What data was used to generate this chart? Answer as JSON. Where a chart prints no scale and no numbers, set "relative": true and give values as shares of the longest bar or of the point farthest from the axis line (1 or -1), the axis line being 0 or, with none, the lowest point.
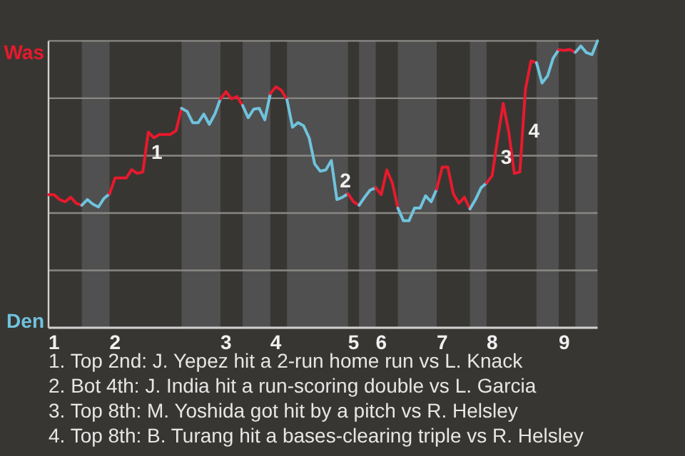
{
  "chart_data": {
    "type": "line",
    "relative": true,
    "categories": [
      null,
      "1",
      null,
      null,
      null,
      null,
      null,
      null,
      null,
      null,
      null,
      null,
      "2",
      null,
      null,
      null,
      null,
      null,
      null,
      null,
      null,
      null,
      null,
      null,
      null,
      null,
      null,
      null,
      null,
      null,
      null,
      null,
      "3",
      null,
      null,
      null,
      null,
      null,
      null,
      null,
      null,
      "4",
      null,
      null,
      null,
      null,
      null,
      null,
      null,
      null,
      null,
      null,
      null,
      null,
      null,
      "5",
      null,
      null,
      null,
      null,
      "6",
      null,
      null,
      null,
      null,
      null,
      null,
      null,
      null,
      null,
      null,
      "7",
      null,
      null,
      null,
      null,
      null,
      null,
      null,
      null,
      "8",
      null,
      null,
      null,
      null,
      null,
      null,
      null,
      null,
      null,
      null,
      null,
      null,
      "9",
      null,
      null,
      null,
      null,
      null,
      null
    ],
    "series": [
      {
        "color": "#e8192c",
        "values": [
          0.464,
          0.464,
          0.447,
          0.439,
          0.455,
          0.434,
          0.427,
          null,
          null,
          null,
          null,
          null,
          null,
          null,
          null,
          null,
          null,
          null,
          null,
          null,
          null,
          null,
          null,
          null,
          null,
          null,
          null,
          null,
          null,
          null,
          null,
          null,
          null,
          null,
          null,
          null,
          null,
          null,
          null,
          null,
          null,
          null,
          null,
          null,
          null,
          null,
          null,
          null,
          null,
          null,
          null,
          null,
          null,
          null,
          null,
          null,
          null,
          null,
          null,
          null,
          null,
          null,
          null,
          null,
          null,
          null,
          null,
          null,
          null,
          null,
          null,
          null,
          null,
          null,
          null,
          null,
          null,
          null,
          null,
          null,
          null,
          null,
          null,
          null,
          null,
          null,
          null,
          null,
          null,
          null,
          null,
          null,
          null,
          null,
          null,
          null,
          null,
          null,
          null,
          null
        ]
      },
      {
        "color": "#6fc3df",
        "values": [
          null,
          null,
          null,
          null,
          null,
          null,
          0.427,
          0.447,
          0.431,
          0.421,
          0.451,
          0.467,
          null,
          null,
          null,
          null,
          null,
          null,
          null,
          null,
          null,
          null,
          null,
          null,
          null,
          null,
          null,
          null,
          null,
          null,
          null,
          null,
          null,
          null,
          null,
          null,
          null,
          null,
          null,
          null,
          null,
          null,
          null,
          null,
          null,
          null,
          null,
          null,
          null,
          null,
          null,
          null,
          null,
          null,
          null,
          null,
          null,
          null,
          null,
          null,
          null,
          null,
          null,
          null,
          null,
          null,
          null,
          null,
          null,
          null,
          null,
          null,
          null,
          null,
          null,
          null,
          null,
          null,
          null,
          null,
          null,
          null,
          null,
          null,
          null,
          null,
          null,
          null,
          null,
          null,
          null,
          null,
          null,
          null,
          null,
          null,
          null,
          null,
          null,
          null
        ]
      },
      {
        "name": "1",
        "color": "#e8192d",
        "values": [
          null,
          null,
          null,
          null,
          null,
          null,
          null,
          null,
          null,
          null,
          null,
          0.467,
          0.522,
          0.522,
          0.522,
          0.551,
          0.538,
          0.543,
          0.682,
          0.662,
          0.674,
          0.674,
          0.674,
          0.687,
          0.765,
          null,
          null,
          null,
          null,
          null,
          null,
          null,
          null,
          null,
          null,
          null,
          null,
          null,
          null,
          null,
          null,
          null,
          null,
          null,
          null,
          null,
          null,
          null,
          null,
          null,
          null,
          null,
          null,
          null,
          null,
          null,
          null,
          null,
          null,
          null,
          null,
          null,
          null,
          null,
          null,
          null,
          null,
          null,
          null,
          null,
          null,
          null,
          null,
          null,
          null,
          null,
          null,
          null,
          null,
          null,
          null,
          null,
          null,
          null,
          null,
          null,
          null,
          null,
          null,
          null,
          null,
          null,
          null,
          null,
          null,
          null,
          null,
          null,
          null,
          null
        ]
      },
      {
        "color": "#6fc3de",
        "values": [
          null,
          null,
          null,
          null,
          null,
          null,
          null,
          null,
          null,
          null,
          null,
          null,
          null,
          null,
          null,
          null,
          null,
          null,
          null,
          null,
          null,
          null,
          null,
          null,
          0.765,
          0.754,
          0.715,
          0.715,
          0.745,
          0.709,
          0.745,
          0.798,
          null,
          null,
          null,
          null,
          null,
          null,
          null,
          null,
          null,
          null,
          null,
          null,
          null,
          null,
          null,
          null,
          null,
          null,
          null,
          null,
          null,
          null,
          null,
          null,
          null,
          null,
          null,
          null,
          null,
          null,
          null,
          null,
          null,
          null,
          null,
          null,
          null,
          null,
          null,
          null,
          null,
          null,
          null,
          null,
          null,
          null,
          null,
          null,
          null,
          null,
          null,
          null,
          null,
          null,
          null,
          null,
          null,
          null,
          null,
          null,
          null,
          null,
          null,
          null,
          null,
          null,
          null,
          null
        ]
      },
      {
        "color": "#e8192e",
        "values": [
          null,
          null,
          null,
          null,
          null,
          null,
          null,
          null,
          null,
          null,
          null,
          null,
          null,
          null,
          null,
          null,
          null,
          null,
          null,
          null,
          null,
          null,
          null,
          null,
          null,
          null,
          null,
          null,
          null,
          null,
          null,
          0.798,
          0.823,
          0.798,
          0.806,
          0.775,
          null,
          null,
          null,
          null,
          null,
          null,
          null,
          null,
          null,
          null,
          null,
          null,
          null,
          null,
          null,
          null,
          null,
          null,
          null,
          null,
          null,
          null,
          null,
          null,
          null,
          null,
          null,
          null,
          null,
          null,
          null,
          null,
          null,
          null,
          null,
          null,
          null,
          null,
          null,
          null,
          null,
          null,
          null,
          null,
          null,
          null,
          null,
          null,
          null,
          null,
          null,
          null,
          null,
          null,
          null,
          null,
          null,
          null,
          null,
          null,
          null,
          null,
          null,
          null
        ]
      },
      {
        "color": "#6fc3dd",
        "values": [
          null,
          null,
          null,
          null,
          null,
          null,
          null,
          null,
          null,
          null,
          null,
          null,
          null,
          null,
          null,
          null,
          null,
          null,
          null,
          null,
          null,
          null,
          null,
          null,
          null,
          null,
          null,
          null,
          null,
          null,
          null,
          null,
          null,
          null,
          null,
          0.775,
          0.732,
          0.762,
          0.765,
          0.725,
          0.816,
          null,
          null,
          null,
          null,
          null,
          null,
          null,
          null,
          null,
          null,
          null,
          null,
          null,
          null,
          null,
          null,
          null,
          null,
          null,
          null,
          null,
          null,
          null,
          null,
          null,
          null,
          null,
          null,
          null,
          null,
          null,
          null,
          null,
          null,
          null,
          null,
          null,
          null,
          null,
          null,
          null,
          null,
          null,
          null,
          null,
          null,
          null,
          null,
          null,
          null,
          null,
          null,
          null,
          null,
          null,
          null,
          null,
          null,
          null
        ]
      },
      {
        "color": "#e8192f",
        "values": [
          null,
          null,
          null,
          null,
          null,
          null,
          null,
          null,
          null,
          null,
          null,
          null,
          null,
          null,
          null,
          null,
          null,
          null,
          null,
          null,
          null,
          null,
          null,
          null,
          null,
          null,
          null,
          null,
          null,
          null,
          null,
          null,
          null,
          null,
          null,
          null,
          null,
          null,
          null,
          null,
          0.816,
          0.84,
          0.828,
          0.795,
          null,
          null,
          null,
          null,
          null,
          null,
          null,
          null,
          null,
          null,
          null,
          null,
          null,
          null,
          null,
          null,
          null,
          null,
          null,
          null,
          null,
          null,
          null,
          null,
          null,
          null,
          null,
          null,
          null,
          null,
          null,
          null,
          null,
          null,
          null,
          null,
          null,
          null,
          null,
          null,
          null,
          null,
          null,
          null,
          null,
          null,
          null,
          null,
          null,
          null,
          null,
          null,
          null,
          null,
          null,
          null
        ]
      },
      {
        "name": "2",
        "color": "#6fc3dc",
        "values": [
          null,
          null,
          null,
          null,
          null,
          null,
          null,
          null,
          null,
          null,
          null,
          null,
          null,
          null,
          null,
          null,
          null,
          null,
          null,
          null,
          null,
          null,
          null,
          null,
          null,
          null,
          null,
          null,
          null,
          null,
          null,
          null,
          null,
          null,
          null,
          null,
          null,
          null,
          null,
          null,
          null,
          null,
          null,
          0.795,
          0.699,
          0.715,
          0.704,
          0.662,
          0.571,
          0.546,
          0.55,
          0.583,
          0.447,
          0.455,
          0.467,
          null,
          null,
          null,
          null,
          null,
          null,
          null,
          null,
          null,
          null,
          null,
          null,
          null,
          null,
          null,
          null,
          null,
          null,
          null,
          null,
          null,
          null,
          null,
          null,
          null,
          null,
          null,
          null,
          null,
          null,
          null,
          null,
          null,
          null,
          null,
          null,
          null,
          null,
          null,
          null,
          null,
          null,
          null,
          null,
          null
        ]
      },
      {
        "color": "#e81930",
        "values": [
          null,
          null,
          null,
          null,
          null,
          null,
          null,
          null,
          null,
          null,
          null,
          null,
          null,
          null,
          null,
          null,
          null,
          null,
          null,
          null,
          null,
          null,
          null,
          null,
          null,
          null,
          null,
          null,
          null,
          null,
          null,
          null,
          null,
          null,
          null,
          null,
          null,
          null,
          null,
          null,
          null,
          null,
          null,
          null,
          null,
          null,
          null,
          null,
          null,
          null,
          null,
          null,
          null,
          null,
          0.467,
          0.439,
          0.427,
          null,
          null,
          null,
          null,
          null,
          null,
          null,
          null,
          null,
          null,
          null,
          null,
          null,
          null,
          null,
          null,
          null,
          null,
          null,
          null,
          null,
          null,
          null,
          null,
          null,
          null,
          null,
          null,
          null,
          null,
          null,
          null,
          null,
          null,
          null,
          null,
          null,
          null,
          null,
          null,
          null,
          null,
          null
        ]
      },
      {
        "color": "#6fc3e0",
        "values": [
          null,
          null,
          null,
          null,
          null,
          null,
          null,
          null,
          null,
          null,
          null,
          null,
          null,
          null,
          null,
          null,
          null,
          null,
          null,
          null,
          null,
          null,
          null,
          null,
          null,
          null,
          null,
          null,
          null,
          null,
          null,
          null,
          null,
          null,
          null,
          null,
          null,
          null,
          null,
          null,
          null,
          null,
          null,
          null,
          null,
          null,
          null,
          null,
          null,
          null,
          null,
          null,
          null,
          null,
          null,
          null,
          0.427,
          0.455,
          0.48,
          0.488,
          null,
          null,
          null,
          null,
          null,
          null,
          null,
          null,
          null,
          null,
          null,
          null,
          null,
          null,
          null,
          null,
          null,
          null,
          null,
          null,
          null,
          null,
          null,
          null,
          null,
          null,
          null,
          null,
          null,
          null,
          null,
          null,
          null,
          null,
          null,
          null,
          null,
          null,
          null,
          null
        ]
      },
      {
        "color": "#e81a2c",
        "values": [
          null,
          null,
          null,
          null,
          null,
          null,
          null,
          null,
          null,
          null,
          null,
          null,
          null,
          null,
          null,
          null,
          null,
          null,
          null,
          null,
          null,
          null,
          null,
          null,
          null,
          null,
          null,
          null,
          null,
          null,
          null,
          null,
          null,
          null,
          null,
          null,
          null,
          null,
          null,
          null,
          null,
          null,
          null,
          null,
          null,
          null,
          null,
          null,
          null,
          null,
          null,
          null,
          null,
          null,
          null,
          null,
          null,
          null,
          null,
          0.488,
          0.464,
          0.55,
          0.505,
          0.417,
          null,
          null,
          null,
          null,
          null,
          null,
          null,
          null,
          null,
          null,
          null,
          null,
          null,
          null,
          null,
          null,
          null,
          null,
          null,
          null,
          null,
          null,
          null,
          null,
          null,
          null,
          null,
          null,
          null,
          null,
          null,
          null,
          null,
          null,
          null,
          null
        ]
      },
      {
        "color": "#6fc4df",
        "values": [
          null,
          null,
          null,
          null,
          null,
          null,
          null,
          null,
          null,
          null,
          null,
          null,
          null,
          null,
          null,
          null,
          null,
          null,
          null,
          null,
          null,
          null,
          null,
          null,
          null,
          null,
          null,
          null,
          null,
          null,
          null,
          null,
          null,
          null,
          null,
          null,
          null,
          null,
          null,
          null,
          null,
          null,
          null,
          null,
          null,
          null,
          null,
          null,
          null,
          null,
          null,
          null,
          null,
          null,
          null,
          null,
          null,
          null,
          null,
          null,
          null,
          null,
          null,
          0.417,
          0.373,
          0.373,
          0.417,
          0.417,
          0.46,
          0.439,
          0.483,
          null,
          null,
          null,
          null,
          null,
          null,
          null,
          null,
          null,
          null,
          null,
          null,
          null,
          null,
          null,
          null,
          null,
          null,
          null,
          null,
          null,
          null,
          null,
          null,
          null,
          null,
          null,
          null,
          null
        ]
      },
      {
        "color": "#e81a2d",
        "values": [
          null,
          null,
          null,
          null,
          null,
          null,
          null,
          null,
          null,
          null,
          null,
          null,
          null,
          null,
          null,
          null,
          null,
          null,
          null,
          null,
          null,
          null,
          null,
          null,
          null,
          null,
          null,
          null,
          null,
          null,
          null,
          null,
          null,
          null,
          null,
          null,
          null,
          null,
          null,
          null,
          null,
          null,
          null,
          null,
          null,
          null,
          null,
          null,
          null,
          null,
          null,
          null,
          null,
          null,
          null,
          null,
          null,
          null,
          null,
          null,
          null,
          null,
          null,
          null,
          null,
          null,
          null,
          null,
          null,
          null,
          0.483,
          0.56,
          0.56,
          0.467,
          0.434,
          0.455,
          0.414,
          null,
          null,
          null,
          null,
          null,
          null,
          null,
          null,
          null,
          null,
          null,
          null,
          null,
          null,
          null,
          null,
          null,
          null,
          null,
          null,
          null,
          null,
          null
        ]
      },
      {
        "color": "#6fc4de",
        "values": [
          null,
          null,
          null,
          null,
          null,
          null,
          null,
          null,
          null,
          null,
          null,
          null,
          null,
          null,
          null,
          null,
          null,
          null,
          null,
          null,
          null,
          null,
          null,
          null,
          null,
          null,
          null,
          null,
          null,
          null,
          null,
          null,
          null,
          null,
          null,
          null,
          null,
          null,
          null,
          null,
          null,
          null,
          null,
          null,
          null,
          null,
          null,
          null,
          null,
          null,
          null,
          null,
          null,
          null,
          null,
          null,
          null,
          null,
          null,
          null,
          null,
          null,
          null,
          null,
          null,
          null,
          null,
          null,
          null,
          null,
          null,
          null,
          null,
          null,
          null,
          null,
          0.414,
          0.447,
          0.488,
          0.505,
          null,
          null,
          null,
          null,
          null,
          null,
          null,
          null,
          null,
          null,
          null,
          null,
          null,
          null,
          null,
          null,
          null,
          null,
          null,
          null
        ]
      },
      {
        "name": "3",
        "color": "#e81a2e",
        "values": [
          null,
          null,
          null,
          null,
          null,
          null,
          null,
          null,
          null,
          null,
          null,
          null,
          null,
          null,
          null,
          null,
          null,
          null,
          null,
          null,
          null,
          null,
          null,
          null,
          null,
          null,
          null,
          null,
          null,
          null,
          null,
          null,
          null,
          null,
          null,
          null,
          null,
          null,
          null,
          null,
          null,
          null,
          null,
          null,
          null,
          null,
          null,
          null,
          null,
          null,
          null,
          null,
          null,
          null,
          null,
          null,
          null,
          null,
          null,
          null,
          null,
          null,
          null,
          null,
          null,
          null,
          null,
          null,
          null,
          null,
          null,
          null,
          null,
          null,
          null,
          null,
          null,
          null,
          null,
          0.505,
          0.53,
          0.662,
          0.781,
          null,
          null,
          null,
          null,
          null,
          null,
          null,
          null,
          null,
          null,
          null,
          null,
          null,
          null,
          null,
          null,
          null
        ]
      },
      {
        "name": "4",
        "color": "#e81a2f",
        "values": [
          null,
          null,
          null,
          null,
          null,
          null,
          null,
          null,
          null,
          null,
          null,
          null,
          null,
          null,
          null,
          null,
          null,
          null,
          null,
          null,
          null,
          null,
          null,
          null,
          null,
          null,
          null,
          null,
          null,
          null,
          null,
          null,
          null,
          null,
          null,
          null,
          null,
          null,
          null,
          null,
          null,
          null,
          null,
          null,
          null,
          null,
          null,
          null,
          null,
          null,
          null,
          null,
          null,
          null,
          null,
          null,
          null,
          null,
          null,
          null,
          null,
          null,
          null,
          null,
          null,
          null,
          null,
          null,
          null,
          null,
          null,
          null,
          null,
          null,
          null,
          null,
          null,
          null,
          null,
          null,
          null,
          null,
          0.781,
          0.682,
          0.538,
          0.543,
          0.831,
          0.93,
          0.924,
          null,
          null,
          null,
          null,
          null,
          null,
          null,
          null,
          null,
          null,
          null
        ]
      },
      {
        "color": "#6fc4dd",
        "values": [
          null,
          null,
          null,
          null,
          null,
          null,
          null,
          null,
          null,
          null,
          null,
          null,
          null,
          null,
          null,
          null,
          null,
          null,
          null,
          null,
          null,
          null,
          null,
          null,
          null,
          null,
          null,
          null,
          null,
          null,
          null,
          null,
          null,
          null,
          null,
          null,
          null,
          null,
          null,
          null,
          null,
          null,
          null,
          null,
          null,
          null,
          null,
          null,
          null,
          null,
          null,
          null,
          null,
          null,
          null,
          null,
          null,
          null,
          null,
          null,
          null,
          null,
          null,
          null,
          null,
          null,
          null,
          null,
          null,
          null,
          null,
          null,
          null,
          null,
          null,
          null,
          null,
          null,
          null,
          null,
          null,
          null,
          null,
          null,
          null,
          null,
          null,
          null,
          0.924,
          0.853,
          0.878,
          0.94,
          0.969,
          null,
          null,
          null,
          null,
          null,
          null,
          null
        ]
      },
      {
        "color": "#e81a30",
        "values": [
          null,
          null,
          null,
          null,
          null,
          null,
          null,
          null,
          null,
          null,
          null,
          null,
          null,
          null,
          null,
          null,
          null,
          null,
          null,
          null,
          null,
          null,
          null,
          null,
          null,
          null,
          null,
          null,
          null,
          null,
          null,
          null,
          null,
          null,
          null,
          null,
          null,
          null,
          null,
          null,
          null,
          null,
          null,
          null,
          null,
          null,
          null,
          null,
          null,
          null,
          null,
          null,
          null,
          null,
          null,
          null,
          null,
          null,
          null,
          null,
          null,
          null,
          null,
          null,
          null,
          null,
          null,
          null,
          null,
          null,
          null,
          null,
          null,
          null,
          null,
          null,
          null,
          null,
          null,
          null,
          null,
          null,
          null,
          null,
          null,
          null,
          null,
          null,
          null,
          null,
          null,
          null,
          0.969,
          0.967,
          0.97,
          0.96,
          null,
          null,
          null,
          null
        ]
      },
      {
        "color": "#6fc4dc",
        "values": [
          null,
          null,
          null,
          null,
          null,
          null,
          null,
          null,
          null,
          null,
          null,
          null,
          null,
          null,
          null,
          null,
          null,
          null,
          null,
          null,
          null,
          null,
          null,
          null,
          null,
          null,
          null,
          null,
          null,
          null,
          null,
          null,
          null,
          null,
          null,
          null,
          null,
          null,
          null,
          null,
          null,
          null,
          null,
          null,
          null,
          null,
          null,
          null,
          null,
          null,
          null,
          null,
          null,
          null,
          null,
          null,
          null,
          null,
          null,
          null,
          null,
          null,
          null,
          null,
          null,
          null,
          null,
          null,
          null,
          null,
          null,
          null,
          null,
          null,
          null,
          null,
          null,
          null,
          null,
          null,
          null,
          null,
          null,
          null,
          null,
          null,
          null,
          null,
          null,
          null,
          null,
          null,
          null,
          null,
          null,
          0.96,
          0.982,
          0.959,
          0.952,
          1
        ]
      }
    ],
    "grid": "y",
    "annotations": [
      "Was",
      "Den",
      "1. Top 2nd: J. Yepez hit a 2-run home run vs L. Knack",
      "2. Bot 4th: J. India hit a run-scoring double vs L. Garcia",
      "3. Top 8th: M. Yoshida got hit by a pitch vs R. Helsley",
      "4. Top 8th: B. Turang hit a bases-clearing triple vs R. Helsley"
    ]
  }
}
